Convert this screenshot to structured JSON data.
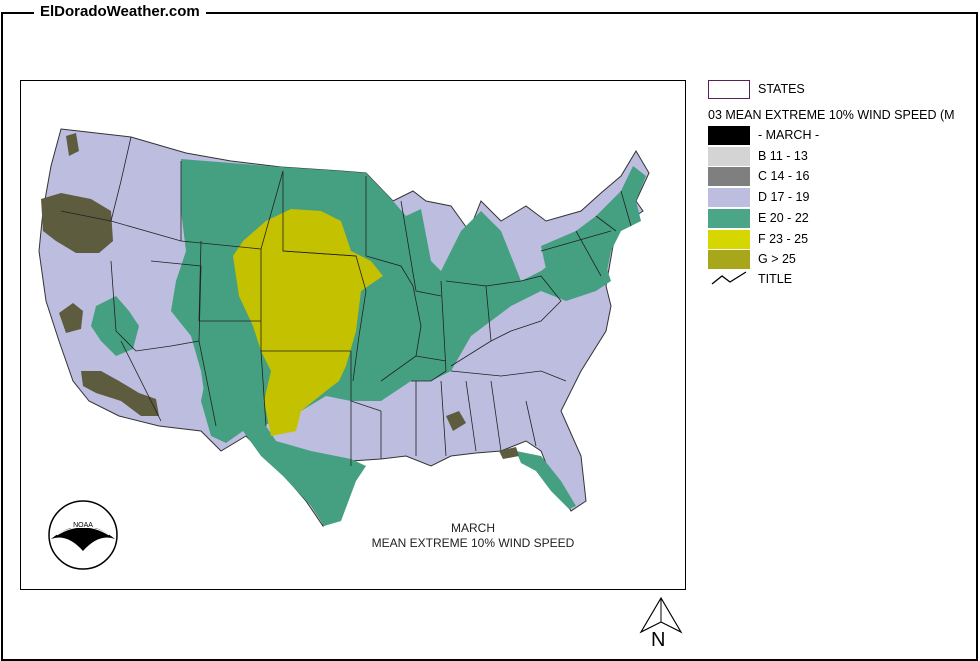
{
  "site": {
    "title": "ElDoradoWeather.com"
  },
  "map": {
    "caption_line1": "MARCH",
    "caption_line2": "MEAN EXTREME 10% WIND SPEED"
  },
  "legend": {
    "states_label": "STATES",
    "layer_title": "03 MEAN EXTREME 10% WIND SPEED (M",
    "title_label": "TITLE",
    "classes": [
      {
        "label": "- MARCH -",
        "color": "#000000"
      },
      {
        "label": "B 11 - 13",
        "color": "#d4d4d4"
      },
      {
        "label": "C 14 - 16",
        "color": "#7f7f7f"
      },
      {
        "label": "D 17 - 19",
        "color": "#bdbde0"
      },
      {
        "label": "E 20 - 22",
        "color": "#4aa687"
      },
      {
        "label": "F 23 - 25",
        "color": "#d6d600"
      },
      {
        "label": "G > 25",
        "color": "#a8a61a"
      }
    ],
    "states_outline_color": "#5a1f5a"
  },
  "colors": {
    "zone_d": "#bdbde0",
    "zone_e": "#45a081",
    "zone_f": "#c4c100",
    "zone_g": "#5e5c3e",
    "state_line": "#222222"
  },
  "north": {
    "letter": "N"
  },
  "icons": {
    "logo": "noaa-logo",
    "north": "north-arrow-icon",
    "title_symbol": "line-symbol-icon"
  }
}
